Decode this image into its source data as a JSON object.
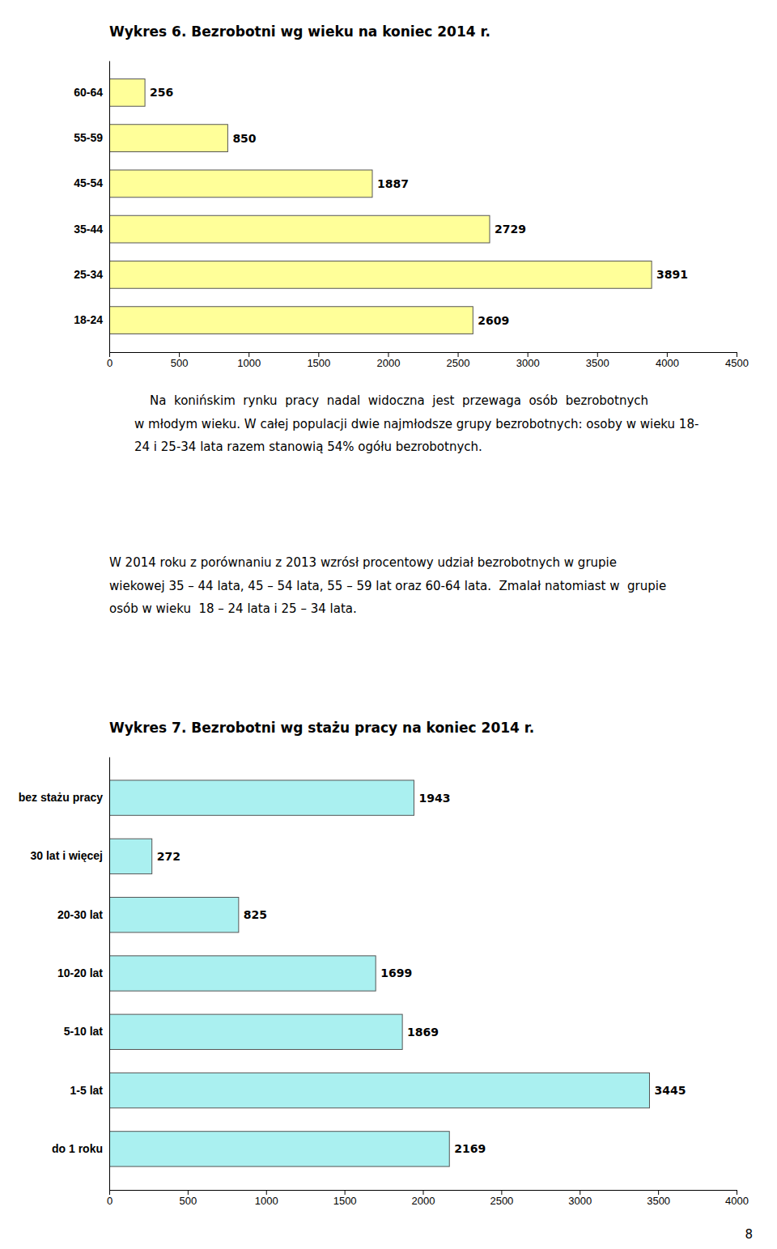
{
  "chart_data": [
    {
      "type": "bar",
      "orientation": "horizontal",
      "title": "Wykres 6. Bezrobotni wg wieku na koniec 2014 r.",
      "categories": [
        "18-24",
        "25-34",
        "35-44",
        "45-54",
        "55-59",
        "60-64"
      ],
      "values": [
        2609,
        3891,
        2729,
        1887,
        850,
        256
      ],
      "color": "#FFFF99",
      "xlim": [
        0,
        4500
      ],
      "xticks": [
        0,
        500,
        1000,
        1500,
        2000,
        2500,
        3000,
        3500,
        4000,
        4500
      ],
      "grid": false,
      "data_labels": true,
      "annotations": [
        "    Na  konińskim  rynku  pracy  nadal  widoczna  jest  przewaga  osób  bezrobotnych\nw młodym wieku. W całej populacji dwie najmłodsze grupy bezrobotnych: osoby w wieku 18-\n24 i 25-34 lata razem stanowią 54% ogółu bezrobotnych.",
        "W 2014 roku z porównaniu z 2013 wzrósł procentowy udział bezrobotnych w grupie\nwiekowej 35 – 44 lata, 45 – 54 lata, 55 – 59 lat oraz 60-64 lata.  Zmalał natomiast w  grupie\nosób w wieku  18 – 24 lata i 25 – 34 lata."
      ]
    },
    {
      "type": "bar",
      "orientation": "horizontal",
      "title": "Wykres 7. Bezrobotni wg stażu pracy na koniec 2014 r.",
      "categories": [
        "do 1 roku",
        "1-5 lat",
        "5-10 lat",
        "10-20 lat",
        "20-30 lat",
        "30 lat i więcej",
        "bez stażu pracy"
      ],
      "values": [
        2169,
        3445,
        1869,
        1699,
        825,
        272,
        1943
      ],
      "color": "#aaf0f0",
      "xlim": [
        0,
        4000
      ],
      "xticks": [
        0,
        500,
        1000,
        1500,
        2000,
        2500,
        3000,
        3500,
        4000
      ],
      "grid": false,
      "data_labels": true,
      "annotations": [
        "8"
      ]
    }
  ]
}
